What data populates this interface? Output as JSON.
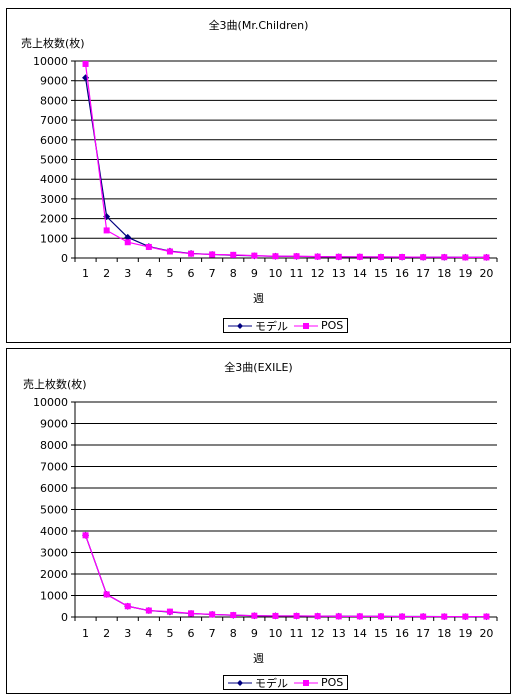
{
  "chart_data": [
    {
      "type": "line",
      "title": "全3曲(Mr.Children)",
      "ylabel": "売上枚数(枚)",
      "xlabel": "週",
      "x": [
        1,
        2,
        3,
        4,
        5,
        6,
        7,
        8,
        9,
        10,
        11,
        12,
        13,
        14,
        15,
        16,
        17,
        18,
        19,
        20
      ],
      "ylim": [
        0,
        10000
      ],
      "yticks": [
        0,
        1000,
        2000,
        3000,
        4000,
        5000,
        6000,
        7000,
        8000,
        9000,
        10000
      ],
      "grid": true,
      "legend": "bottom",
      "series": [
        {
          "name": "モデル",
          "color": "#000080",
          "marker": "diamond",
          "values": [
            9150,
            2100,
            1050,
            580,
            350,
            230,
            180,
            140,
            110,
            90,
            80,
            70,
            60,
            55,
            50,
            45,
            40,
            38,
            35,
            32
          ]
        },
        {
          "name": "POS",
          "color": "#ff00ff",
          "marker": "square",
          "values": [
            9850,
            1400,
            800,
            560,
            330,
            220,
            180,
            160,
            120,
            90,
            90,
            70,
            60,
            60,
            50,
            50,
            40,
            40,
            30,
            30
          ]
        }
      ]
    },
    {
      "type": "line",
      "title": "全3曲(EXILE)",
      "ylabel": "売上枚数(枚)",
      "xlabel": "週",
      "x": [
        1,
        2,
        3,
        4,
        5,
        6,
        7,
        8,
        9,
        10,
        11,
        12,
        13,
        14,
        15,
        16,
        17,
        18,
        19,
        20
      ],
      "ylim": [
        0,
        10000
      ],
      "yticks": [
        0,
        1000,
        2000,
        3000,
        4000,
        5000,
        6000,
        7000,
        8000,
        9000,
        10000
      ],
      "grid": true,
      "legend": "bottom",
      "series": [
        {
          "name": "モデル",
          "color": "#000080",
          "marker": "diamond",
          "values": [
            3800,
            1050,
            500,
            300,
            230,
            160,
            120,
            80,
            60,
            50,
            45,
            40,
            35,
            30,
            28,
            25,
            22,
            20,
            18,
            15
          ]
        },
        {
          "name": "POS",
          "color": "#ff00ff",
          "marker": "square",
          "values": [
            3800,
            1050,
            500,
            300,
            250,
            170,
            120,
            90,
            60,
            50,
            50,
            40,
            30,
            30,
            30,
            20,
            20,
            20,
            20,
            20
          ]
        }
      ]
    }
  ]
}
